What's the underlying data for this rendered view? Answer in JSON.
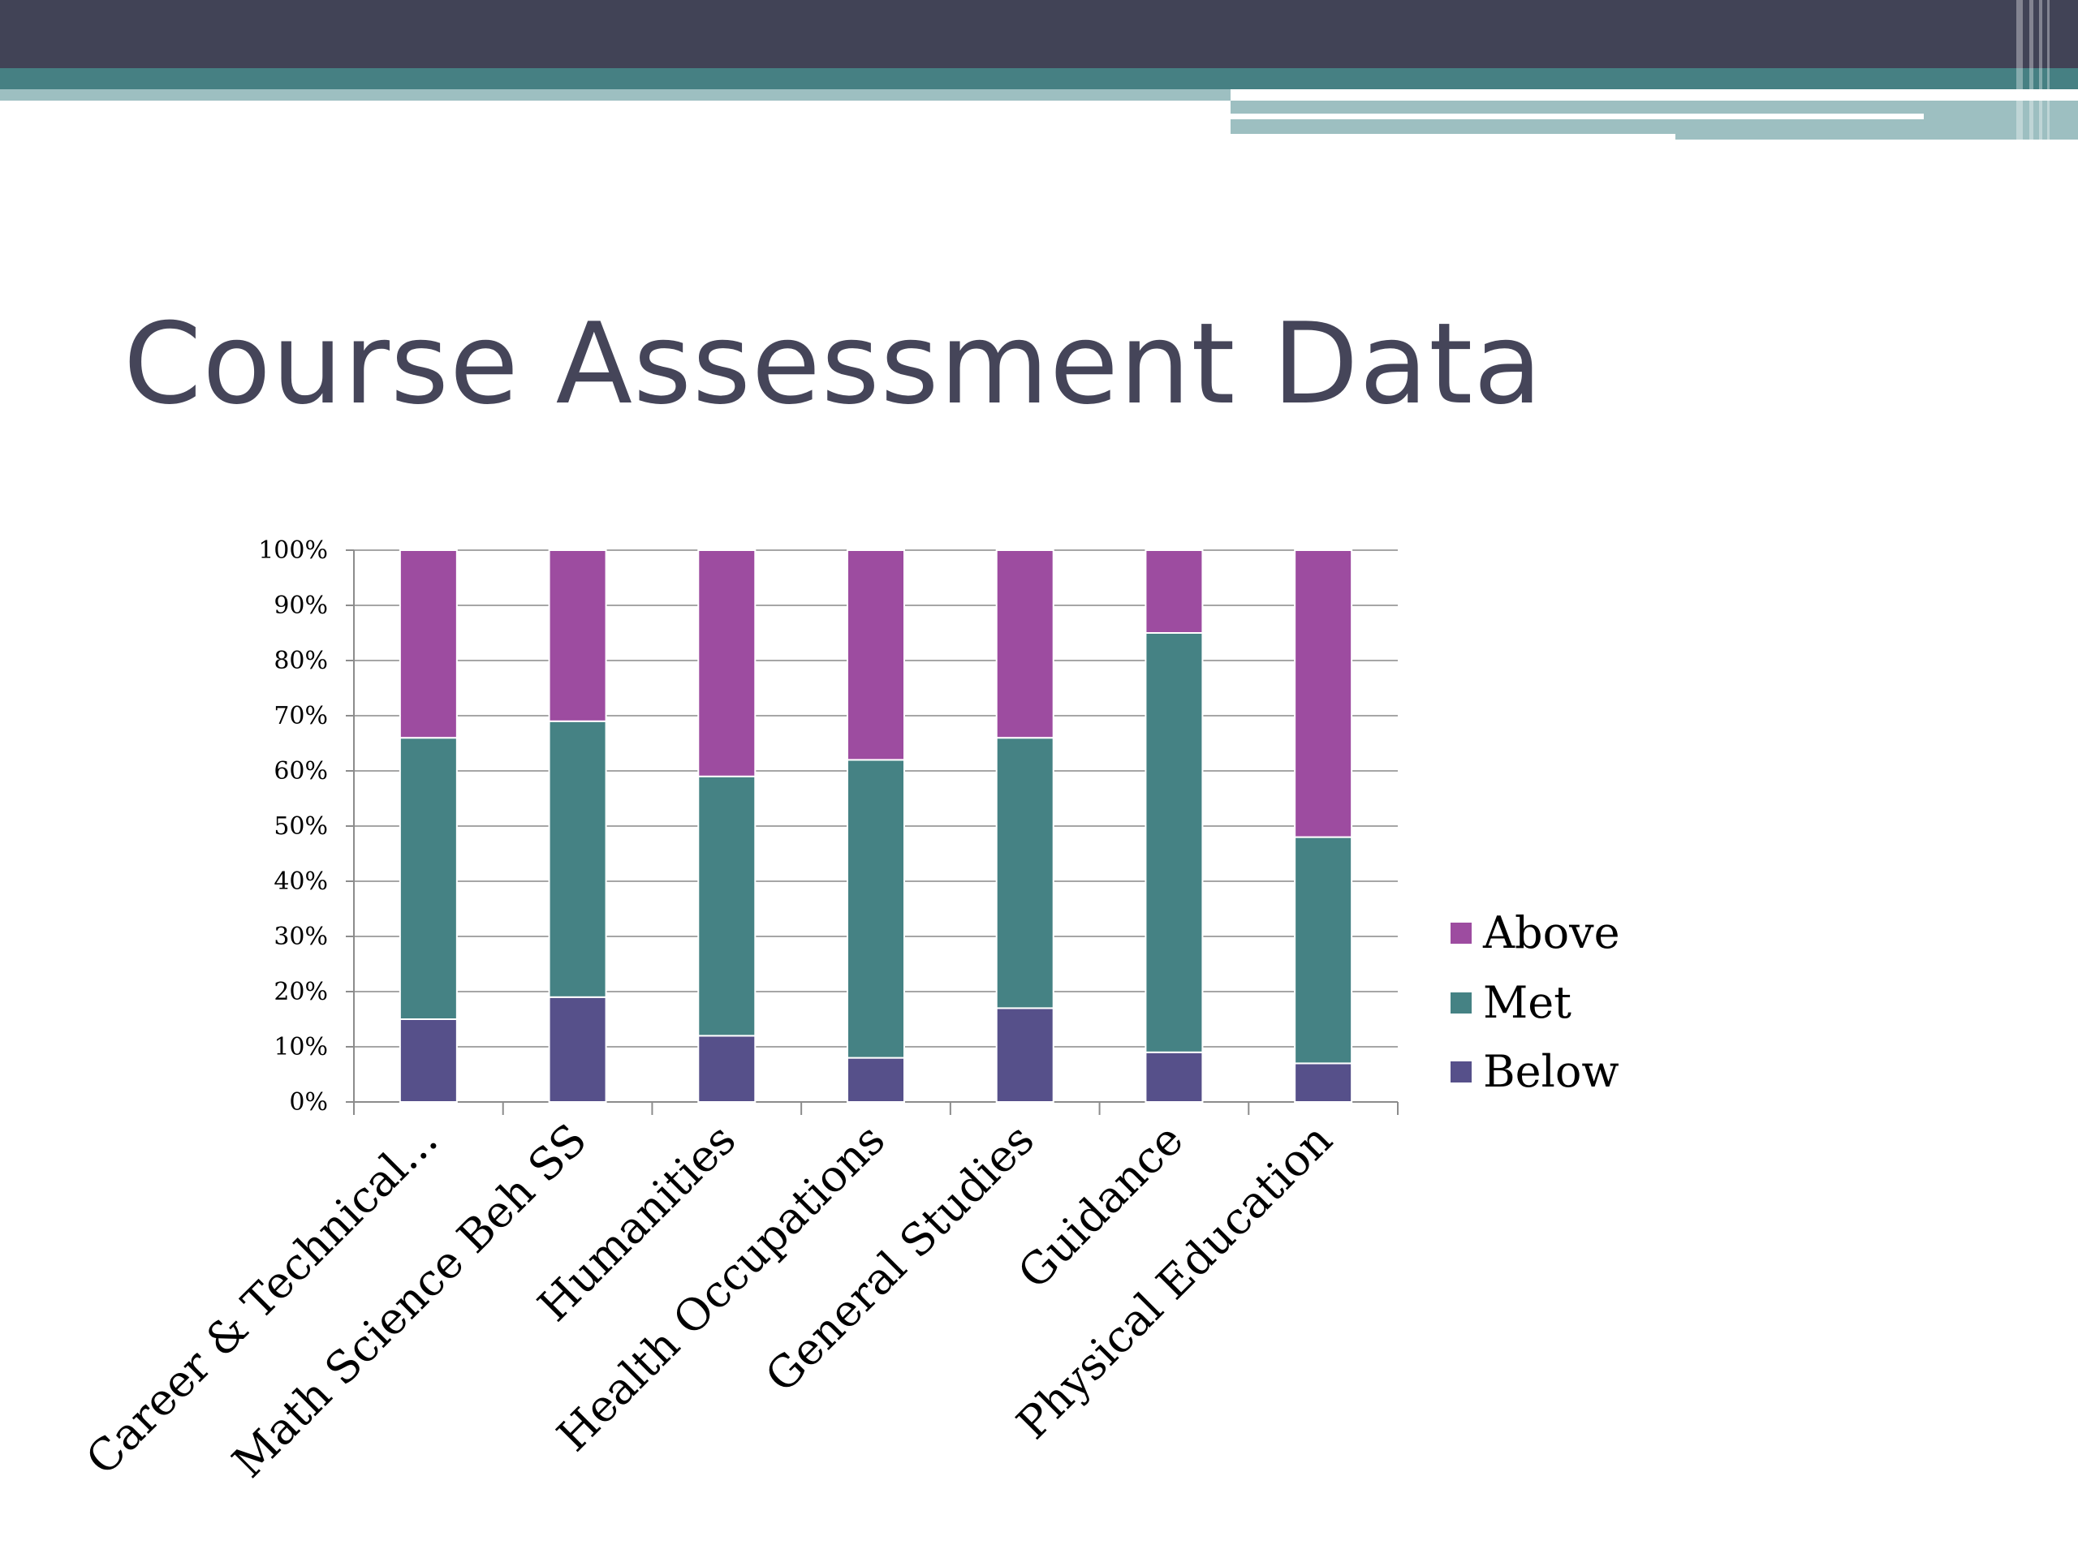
{
  "slide": {
    "title": "Course Assessment Data"
  },
  "colors": {
    "header_dark": "#414356",
    "header_teal": "#468083",
    "header_light": "#9DBFC1",
    "title": "#454559",
    "gridline": "#A6A6A6"
  },
  "chart_data": {
    "type": "bar",
    "stacked": true,
    "percent": true,
    "categories": [
      "Career & Technical...",
      "Math Science Beh SS",
      "Humanities",
      "Health Occupations",
      "General Studies",
      "Guidance",
      "Physical Education"
    ],
    "series": [
      {
        "name": "Below",
        "color": "#56508A",
        "values": [
          15,
          19,
          12,
          8,
          17,
          9,
          7
        ]
      },
      {
        "name": "Met",
        "color": "#458284",
        "values": [
          51,
          50,
          47,
          54,
          49,
          76,
          41
        ]
      },
      {
        "name": "Above",
        "color": "#9D4CA0",
        "values": [
          34,
          31,
          41,
          38,
          34,
          15,
          52
        ]
      }
    ],
    "ylim": [
      0,
      100
    ],
    "yticks": [
      "0%",
      "10%",
      "20%",
      "30%",
      "40%",
      "50%",
      "60%",
      "70%",
      "80%",
      "90%",
      "100%"
    ],
    "grid": true,
    "legend_position": "right",
    "legend_order": [
      "Above",
      "Met",
      "Below"
    ],
    "xlabel": "",
    "ylabel": ""
  }
}
